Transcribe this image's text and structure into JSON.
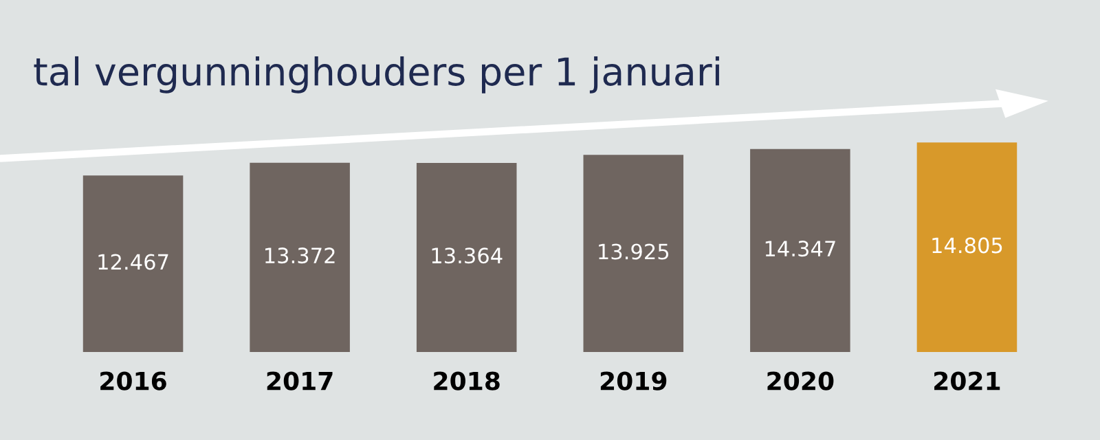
{
  "chart_data": {
    "type": "bar",
    "title": "tal vergunninghouders per 1 januari",
    "categories": [
      "2016",
      "2017",
      "2018",
      "2019",
      "2020",
      "2021"
    ],
    "values": [
      12467,
      13372,
      13364,
      13925,
      14347,
      14805
    ],
    "value_labels": [
      "12.467",
      "13.372",
      "13.364",
      "13.925",
      "14.347",
      "14.805"
    ],
    "colors": [
      "#6f6560",
      "#6f6560",
      "#6f6560",
      "#6f6560",
      "#6f6560",
      "#d8992a"
    ],
    "tick_labels": "x",
    "grid": false,
    "legend": false
  }
}
